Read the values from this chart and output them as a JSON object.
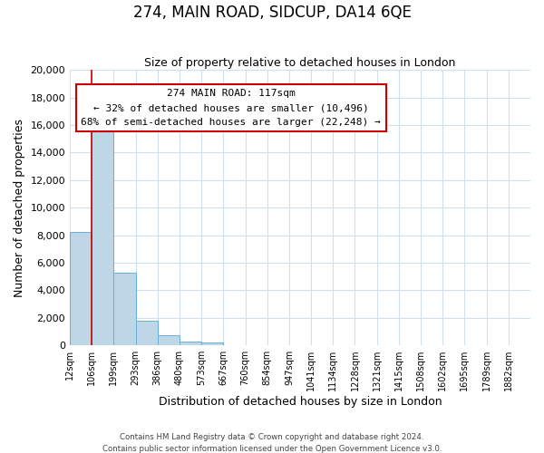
{
  "title": "274, MAIN ROAD, SIDCUP, DA14 6QE",
  "subtitle": "Size of property relative to detached houses in London",
  "xlabel": "Distribution of detached houses by size in London",
  "ylabel": "Number of detached properties",
  "bar_color": "#bdd7e7",
  "bar_edge_color": "#6aaed6",
  "grid_color": "#d0dff0",
  "categories": [
    "12sqm",
    "106sqm",
    "199sqm",
    "293sqm",
    "386sqm",
    "480sqm",
    "573sqm",
    "667sqm",
    "760sqm",
    "854sqm",
    "947sqm",
    "1041sqm",
    "1134sqm",
    "1228sqm",
    "1321sqm",
    "1415sqm",
    "1508sqm",
    "1602sqm",
    "1695sqm",
    "1789sqm",
    "1882sqm"
  ],
  "values": [
    8200,
    16600,
    5300,
    1750,
    750,
    280,
    220,
    0,
    0,
    0,
    0,
    0,
    0,
    0,
    0,
    0,
    0,
    0,
    0,
    0,
    0
  ],
  "ylim": [
    0,
    20000
  ],
  "yticks": [
    0,
    2000,
    4000,
    6000,
    8000,
    10000,
    12000,
    14000,
    16000,
    18000,
    20000
  ],
  "annotation_title": "274 MAIN ROAD: 117sqm",
  "annotation_line1": "← 32% of detached houses are smaller (10,496)",
  "annotation_line2": "68% of semi-detached houses are larger (22,248) →",
  "vline_x_index": 1,
  "vline_color": "#cc0000",
  "box_facecolor": "#ffffff",
  "box_edgecolor": "#cc0000",
  "footer1": "Contains HM Land Registry data © Crown copyright and database right 2024.",
  "footer2": "Contains public sector information licensed under the Open Government Licence v3.0."
}
